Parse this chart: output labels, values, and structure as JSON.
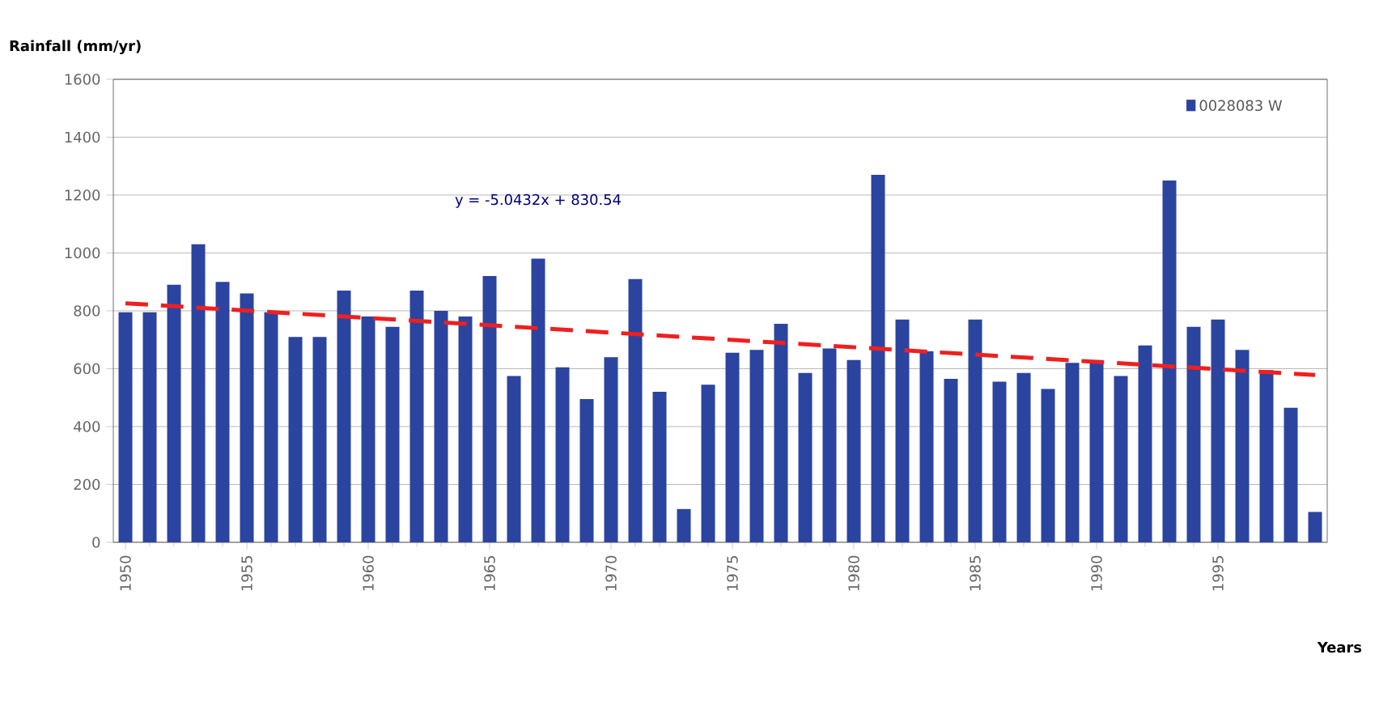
{
  "chart_data": {
    "type": "bar",
    "xlabel": "Years",
    "ylabel": "Rainfall (mm/yr)",
    "x": [
      1950,
      1951,
      1952,
      1953,
      1954,
      1955,
      1956,
      1957,
      1958,
      1959,
      1960,
      1961,
      1962,
      1963,
      1964,
      1965,
      1966,
      1967,
      1968,
      1969,
      1970,
      1971,
      1972,
      1973,
      1974,
      1975,
      1976,
      1977,
      1978,
      1979,
      1980,
      1981,
      1982,
      1983,
      1984,
      1985,
      1986,
      1987,
      1988,
      1989,
      1990,
      1991,
      1992,
      1993,
      1994,
      1995,
      1996,
      1997,
      1998,
      1999
    ],
    "series": [
      {
        "name": "0028083 W",
        "color": "#2b44a0",
        "values": [
          795,
          795,
          890,
          1030,
          900,
          860,
          795,
          710,
          710,
          870,
          780,
          745,
          870,
          800,
          780,
          920,
          575,
          980,
          605,
          495,
          640,
          910,
          520,
          115,
          545,
          655,
          665,
          755,
          585,
          670,
          630,
          1270,
          770,
          660,
          565,
          770,
          555,
          585,
          530,
          620,
          630,
          575,
          680,
          1250,
          745,
          770,
          665,
          595,
          465,
          105
        ]
      },
      {
        "type": "line",
        "color": "#ee2020",
        "line_style": "dashed",
        "marker": "none",
        "x": [
          1950,
          1999
        ],
        "values": [
          826,
          578
        ]
      }
    ],
    "annotations": [
      "y = -5.0432x + 830.54"
    ],
    "xlim": [
      1949.5,
      1999.5
    ],
    "xticks": [
      1950,
      1955,
      1960,
      1965,
      1970,
      1975,
      1980,
      1985,
      1990,
      1995
    ],
    "ylim": [
      0,
      1600
    ],
    "yticks": [
      0,
      200,
      400,
      600,
      800,
      1000,
      1200,
      1400,
      1600
    ],
    "grid": "y",
    "legend": "top right"
  }
}
